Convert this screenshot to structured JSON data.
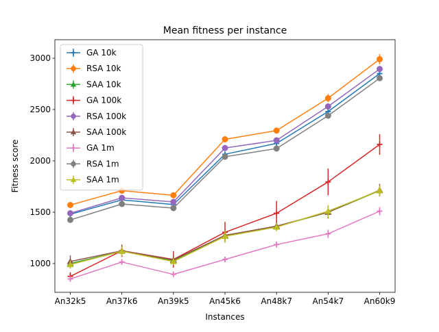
{
  "chart_data": {
    "type": "line",
    "title": "Mean fitness per instance",
    "xlabel": "Instances",
    "ylabel": "Fitness score",
    "categories": [
      "An32k5",
      "An37k6",
      "An39k5",
      "An45k6",
      "An48k7",
      "An54k7",
      "An60k9"
    ],
    "ylim": [
      720,
      3180
    ],
    "yticks": [
      1000,
      1500,
      2000,
      2500,
      3000
    ],
    "grid": false,
    "legend_position": "top-left",
    "series": [
      {
        "name": "GA 10k",
        "color": "#1f77b4",
        "marker": "plus",
        "values": [
          1480,
          1620,
          1575,
          2065,
          2170,
          2480,
          2850
        ],
        "errors": [
          15,
          15,
          20,
          20,
          15,
          20,
          25
        ]
      },
      {
        "name": "RSA 10k",
        "color": "#ff7f0e",
        "marker": "circle",
        "values": [
          1570,
          1710,
          1665,
          2210,
          2295,
          2610,
          2990
        ],
        "errors": [
          25,
          25,
          20,
          30,
          25,
          40,
          50
        ]
      },
      {
        "name": "SAA 10k",
        "color": "#2ca02c",
        "marker": "triangle",
        "values": [
          1000,
          1120,
          1030,
          1270,
          1360,
          1500,
          1710
        ],
        "errors": [
          30,
          25,
          20,
          30,
          25,
          30,
          30
        ]
      },
      {
        "name": "GA 100k",
        "color": "#d62728",
        "marker": "plus",
        "values": [
          875,
          1125,
          1040,
          1305,
          1490,
          1795,
          2160
        ],
        "errors": [
          40,
          60,
          80,
          100,
          120,
          130,
          100
        ]
      },
      {
        "name": "RSA 100k",
        "color": "#9467bd",
        "marker": "circle",
        "values": [
          1490,
          1640,
          1600,
          2125,
          2200,
          2530,
          2895
        ],
        "errors": [
          15,
          15,
          15,
          20,
          15,
          25,
          20
        ]
      },
      {
        "name": "SAA 100k",
        "color": "#8c564b",
        "marker": "triangle",
        "values": [
          1020,
          1125,
          1035,
          1275,
          1365,
          1500,
          1715
        ],
        "errors": [
          60,
          55,
          50,
          50,
          40,
          60,
          60
        ]
      },
      {
        "name": "GA 1m",
        "color": "#e377c2",
        "marker": "plus",
        "values": [
          850,
          1015,
          895,
          1040,
          1185,
          1290,
          1510
        ],
        "errors": [
          20,
          20,
          20,
          25,
          30,
          40,
          40
        ]
      },
      {
        "name": "RSA 1m",
        "color": "#7f7f7f",
        "marker": "circle",
        "values": [
          1425,
          1580,
          1540,
          2040,
          2120,
          2440,
          2805
        ],
        "errors": [
          10,
          10,
          10,
          15,
          10,
          15,
          20
        ]
      },
      {
        "name": "SAA 1m",
        "color": "#bcbd22",
        "marker": "triangle",
        "values": [
          990,
          1120,
          1020,
          1265,
          1355,
          1510,
          1710
        ],
        "errors": [
          40,
          45,
          35,
          60,
          40,
          60,
          50
        ]
      }
    ]
  }
}
